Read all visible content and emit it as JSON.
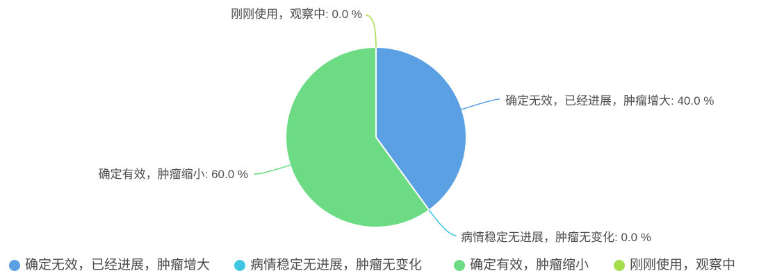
{
  "chart_data": {
    "type": "pie",
    "title": "",
    "start_angle_deg": 0,
    "direction": "clockwise",
    "legend_position": "bottom",
    "slices": [
      {
        "name": "确定无效，已经进展，肿瘤增大",
        "value": 40.0,
        "percent_label": "40.0 %",
        "color": "#5AA0E2"
      },
      {
        "name": "病情稳定无进展，肿瘤无变化",
        "value": 0.0,
        "percent_label": "0.0 %",
        "color": "#41C7E2"
      },
      {
        "name": "确定有效，肿瘤缩小",
        "value": 60.0,
        "percent_label": "60.0 %",
        "color": "#6CDB84"
      },
      {
        "name": "刚刚使用，观察中",
        "value": 0.0,
        "percent_label": "0.0 %",
        "color": "#A4DE4C"
      }
    ],
    "callouts": {
      "top": "刚刚使用，观察中: 0.0 %",
      "right": "确定无效，已经进展，肿瘤增大: 40.0 %",
      "bottom_right": "病情稳定无进展，肿瘤无变化: 0.0 %",
      "left": "确定有效，肿瘤缩小: 60.0 %"
    },
    "legend": [
      {
        "label": "确定无效，已经进展，肿瘤增大",
        "color": "#5AA0E2"
      },
      {
        "label": "病情稳定无进展，肿瘤无变化",
        "color": "#41C7E2"
      },
      {
        "label": "确定有效，肿瘤缩小",
        "color": "#6CDB84"
      },
      {
        "label": "刚刚使用，观察中",
        "color": "#A4DE4C"
      }
    ]
  }
}
